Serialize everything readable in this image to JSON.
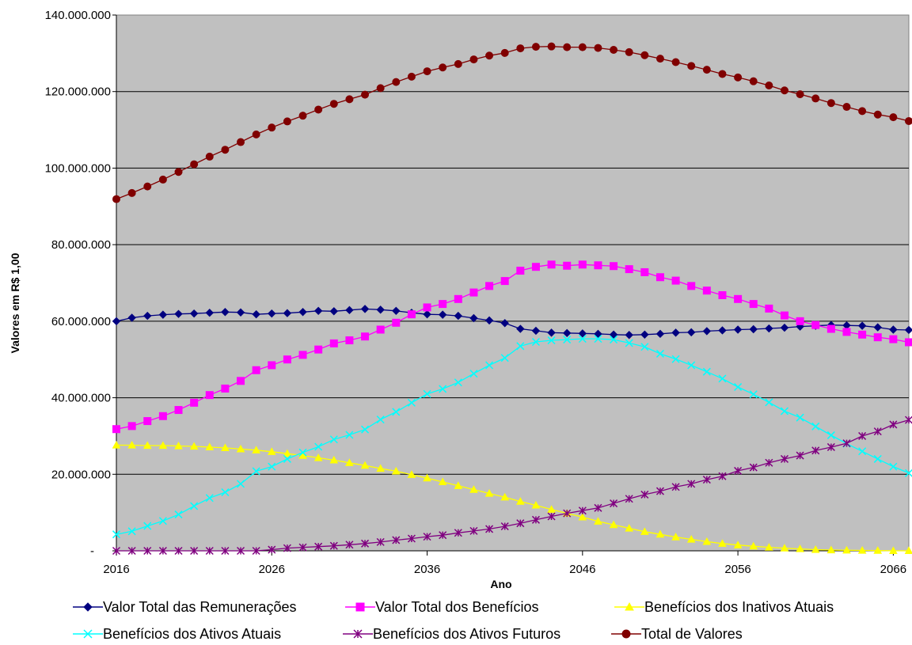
{
  "chart_data": {
    "type": "line",
    "title": "",
    "xlabel": "Ano",
    "ylabel": "Valores em R$ 1,00",
    "x_tick_labels": [
      "2016",
      "2026",
      "2036",
      "2046",
      "2056",
      "2066"
    ],
    "y_tick_labels": [
      "-",
      "20.000.000",
      "40.000.000",
      "60.000.000",
      "80.000.000",
      "100.000.000",
      "120.000.000",
      "140.000.000"
    ],
    "xlim": [
      2016,
      2067
    ],
    "ylim": [
      0,
      140000000
    ],
    "grid": true,
    "plot_background": "#c0c0c0",
    "legend_position": "bottom",
    "x": [
      2016,
      2017,
      2018,
      2019,
      2020,
      2021,
      2022,
      2023,
      2024,
      2025,
      2026,
      2027,
      2028,
      2029,
      2030,
      2031,
      2032,
      2033,
      2034,
      2035,
      2036,
      2037,
      2038,
      2039,
      2040,
      2041,
      2042,
      2043,
      2044,
      2045,
      2046,
      2047,
      2048,
      2049,
      2050,
      2051,
      2052,
      2053,
      2054,
      2055,
      2056,
      2057,
      2058,
      2059,
      2060,
      2061,
      2062,
      2063,
      2064,
      2065,
      2066,
      2067
    ],
    "series": [
      {
        "name": "Valor Total das Remunerações",
        "color": "#000080",
        "marker": "diamond",
        "values": [
          60000000,
          60900000,
          61400000,
          61700000,
          61900000,
          62000000,
          62200000,
          62400000,
          62300000,
          61800000,
          62000000,
          62100000,
          62400000,
          62700000,
          62600000,
          62900000,
          63200000,
          63000000,
          62700000,
          62200000,
          61800000,
          61700000,
          61400000,
          60800000,
          60200000,
          59500000,
          58000000,
          57500000,
          57000000,
          56900000,
          56800000,
          56700000,
          56500000,
          56400000,
          56500000,
          56700000,
          57000000,
          57100000,
          57400000,
          57600000,
          57800000,
          57900000,
          58100000,
          58300000,
          58600000,
          58800000,
          59000000,
          58900000,
          58800000,
          58400000,
          57800000,
          57700000
        ]
      },
      {
        "name": "Valor Total dos Benefícios",
        "color": "#ff00ff",
        "marker": "square",
        "values": [
          31800000,
          32600000,
          33900000,
          35200000,
          36800000,
          38700000,
          40700000,
          42400000,
          44400000,
          47200000,
          48500000,
          50000000,
          51200000,
          52600000,
          54200000,
          55000000,
          56000000,
          57800000,
          59600000,
          61800000,
          63600000,
          64500000,
          65800000,
          67500000,
          69200000,
          70500000,
          73200000,
          74200000,
          74800000,
          74500000,
          74800000,
          74600000,
          74400000,
          73600000,
          72800000,
          71500000,
          70600000,
          69200000,
          68000000,
          66800000,
          65800000,
          64500000,
          63300000,
          61500000,
          60000000,
          59000000,
          58000000,
          57200000,
          56500000,
          55800000,
          55300000,
          54500000
        ]
      },
      {
        "name": "Benefícios dos Inativos Atuais",
        "color": "#ffff00",
        "marker": "triangle",
        "values": [
          27600000,
          27600000,
          27500000,
          27500000,
          27400000,
          27300000,
          27100000,
          26900000,
          26600000,
          26300000,
          25900000,
          25400000,
          24900000,
          24300000,
          23700000,
          23000000,
          22300000,
          21500000,
          20800000,
          19900000,
          19000000,
          18000000,
          17000000,
          16000000,
          15000000,
          14000000,
          12900000,
          11900000,
          10800000,
          9800000,
          8800000,
          7700000,
          6800000,
          5900000,
          5000000,
          4300000,
          3600000,
          3000000,
          2400000,
          1900000,
          1500000,
          1200000,
          900000,
          700000,
          500000,
          300000,
          200000,
          150000,
          100000,
          60000,
          30000,
          10000
        ]
      },
      {
        "name": "Benefícios dos Ativos Atuais",
        "color": "#00ffff",
        "marker": "x",
        "values": [
          4300000,
          5100000,
          6500000,
          7800000,
          9500000,
          11700000,
          13800000,
          15300000,
          17500000,
          20800000,
          22000000,
          24000000,
          25700000,
          27200000,
          29100000,
          30300000,
          31700000,
          34300000,
          36300000,
          38700000,
          41000000,
          42300000,
          44000000,
          46300000,
          48500000,
          50400000,
          53500000,
          54600000,
          55000000,
          55200000,
          55400000,
          55400000,
          55200000,
          54300000,
          53300000,
          51500000,
          50100000,
          48500000,
          46800000,
          45000000,
          42800000,
          40900000,
          38800000,
          36500000,
          34800000,
          32500000,
          30200000,
          28000000,
          26000000,
          24000000,
          22000000,
          20300000
        ]
      },
      {
        "name": "Benefícios dos Ativos Futuros",
        "color": "#800080",
        "marker": "star",
        "values": [
          0,
          0,
          0,
          0,
          0,
          0,
          0,
          0,
          0,
          0,
          300000,
          700000,
          900000,
          1100000,
          1300000,
          1600000,
          1900000,
          2300000,
          2800000,
          3200000,
          3700000,
          4100000,
          4700000,
          5200000,
          5700000,
          6400000,
          7200000,
          8100000,
          9000000,
          9800000,
          10500000,
          11200000,
          12400000,
          13600000,
          14700000,
          15600000,
          16700000,
          17500000,
          18600000,
          19500000,
          20900000,
          21800000,
          23000000,
          24000000,
          24900000,
          26200000,
          27100000,
          28100000,
          30000000,
          31200000,
          33000000,
          34200000
        ]
      },
      {
        "name": "Total de Valores",
        "color": "#800000",
        "marker": "circle",
        "values": [
          91900000,
          93500000,
          95200000,
          97000000,
          99000000,
          101000000,
          103000000,
          104800000,
          106800000,
          108800000,
          110600000,
          112200000,
          113700000,
          115300000,
          116800000,
          118000000,
          119200000,
          120900000,
          122500000,
          123900000,
          125300000,
          126300000,
          127200000,
          128400000,
          129400000,
          130100000,
          131300000,
          131700000,
          131800000,
          131600000,
          131600000,
          131400000,
          130900000,
          130300000,
          129500000,
          128600000,
          127700000,
          126700000,
          125700000,
          124600000,
          123700000,
          122700000,
          121600000,
          120300000,
          119300000,
          118200000,
          117000000,
          116000000,
          114900000,
          114000000,
          113300000,
          112300000
        ]
      }
    ]
  }
}
